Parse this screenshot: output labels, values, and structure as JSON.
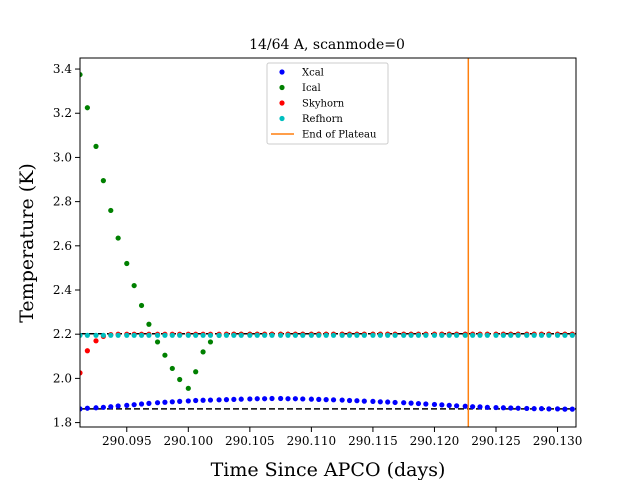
{
  "chart_data": {
    "type": "scatter",
    "title": "14/64 A, scanmode=0",
    "xlabel": "Time Since APCO (days)",
    "ylabel": "Temperature (K)",
    "xlim": [
      290.0912,
      290.1315
    ],
    "ylim": [
      1.78,
      3.45
    ],
    "xticks": [
      290.095,
      290.1,
      290.105,
      290.11,
      290.115,
      290.12,
      290.125,
      290.13
    ],
    "xtick_labels": [
      "290.095",
      "290.100",
      "290.105",
      "290.110",
      "290.115",
      "290.120",
      "290.125",
      "290.130"
    ],
    "yticks": [
      1.8,
      2.0,
      2.2,
      2.4,
      2.6,
      2.8,
      3.0,
      3.2,
      3.4
    ],
    "ytick_labels": [
      "1.8",
      "2.0",
      "2.2",
      "2.4",
      "2.6",
      "2.8",
      "3.0",
      "3.2",
      "3.4"
    ],
    "grid": false,
    "legend_position": "upper-center",
    "series": [
      {
        "name": "Xcal",
        "color": "#0000ff",
        "x": [
          290.0912,
          290.0918,
          290.0925,
          290.0931,
          290.0937,
          290.0943,
          290.095,
          290.0956,
          290.0962,
          290.0968,
          290.0975,
          290.0981,
          290.0987,
          290.0993,
          290.1,
          290.1006,
          290.1012,
          290.1018,
          290.1025,
          290.1031,
          290.1037,
          290.1043,
          290.105,
          290.1056,
          290.1062,
          290.1068,
          290.1075,
          290.1081,
          290.1087,
          290.1093,
          290.11,
          290.1106,
          290.1112,
          290.1118,
          290.1125,
          290.1131,
          290.1137,
          290.1143,
          290.115,
          290.1156,
          290.1162,
          290.1168,
          290.1175,
          290.1181,
          290.1187,
          290.1193,
          290.12,
          290.1206,
          290.1212,
          290.1218,
          290.1225,
          290.1231,
          290.1237,
          290.1243,
          290.125,
          290.1256,
          290.1262,
          290.1268,
          290.1275,
          290.1281,
          290.1287,
          290.1293,
          290.13,
          290.1306,
          290.1312
        ],
        "y": [
          1.862,
          1.865,
          1.867,
          1.869,
          1.872,
          1.875,
          1.878,
          1.881,
          1.884,
          1.887,
          1.89,
          1.892,
          1.894,
          1.896,
          1.898,
          1.9,
          1.901,
          1.902,
          1.903,
          1.904,
          1.905,
          1.906,
          1.907,
          1.908,
          1.908,
          1.909,
          1.909,
          1.908,
          1.908,
          1.907,
          1.906,
          1.905,
          1.904,
          1.903,
          1.902,
          1.9,
          1.899,
          1.897,
          1.896,
          1.894,
          1.893,
          1.891,
          1.89,
          1.888,
          1.886,
          1.884,
          1.882,
          1.88,
          1.878,
          1.876,
          1.874,
          1.872,
          1.871,
          1.869,
          1.868,
          1.867,
          1.866,
          1.865,
          1.864,
          1.863,
          1.863,
          1.862,
          1.862,
          1.861,
          1.861
        ]
      },
      {
        "name": "Ical",
        "color": "#008000",
        "x": [
          290.0912,
          290.0918,
          290.0925,
          290.0931,
          290.0937,
          290.0943,
          290.095,
          290.0956,
          290.0962,
          290.0968,
          290.0975,
          290.0981,
          290.0987,
          290.0993,
          290.1,
          290.1006,
          290.1012,
          290.1018,
          290.1025,
          290.1031,
          290.1037,
          290.1043,
          290.105,
          290.1056,
          290.1062,
          290.1068,
          290.1075,
          290.1081,
          290.1087,
          290.1093,
          290.11,
          290.1106,
          290.1112,
          290.1118,
          290.1125,
          290.1131,
          290.1137,
          290.1143,
          290.115,
          290.1156,
          290.1162,
          290.1168,
          290.1175,
          290.1181,
          290.1187,
          290.1193,
          290.12,
          290.1206,
          290.1212,
          290.1218,
          290.1225,
          290.1231,
          290.1237,
          290.1243,
          290.125,
          290.1256,
          290.1262,
          290.1268,
          290.1275,
          290.1281,
          290.1287,
          290.1293,
          290.13,
          290.1306,
          290.1312
        ],
        "y": [
          3.375,
          3.225,
          3.05,
          2.895,
          2.76,
          2.635,
          2.52,
          2.42,
          2.33,
          2.245,
          2.165,
          2.105,
          2.045,
          1.995,
          1.955,
          2.03,
          2.12,
          2.165,
          2.195,
          2.2,
          2.2,
          2.2,
          2.2,
          2.2,
          2.2,
          2.2,
          2.2,
          2.2,
          2.2,
          2.2,
          2.2,
          2.2,
          2.2,
          2.2,
          2.2,
          2.2,
          2.2,
          2.2,
          2.2,
          2.2,
          2.2,
          2.2,
          2.2,
          2.2,
          2.2,
          2.2,
          2.2,
          2.2,
          2.2,
          2.2,
          2.2,
          2.2,
          2.2,
          2.2,
          2.2,
          2.2,
          2.2,
          2.2,
          2.2,
          2.2,
          2.2,
          2.2,
          2.2,
          2.2,
          2.2
        ]
      },
      {
        "name": "Skyhorn",
        "color": "#ff0000",
        "x": [
          290.0912,
          290.0918,
          290.0925,
          290.0931,
          290.0937,
          290.0943,
          290.095,
          290.0956,
          290.0962,
          290.0968,
          290.0975,
          290.0981,
          290.0987,
          290.0993,
          290.1,
          290.1006,
          290.1012,
          290.1018,
          290.1025,
          290.1031,
          290.1037,
          290.1043,
          290.105,
          290.1056,
          290.1062,
          290.1068,
          290.1075,
          290.1081,
          290.1087,
          290.1093,
          290.11,
          290.1106,
          290.1112,
          290.1118,
          290.1125,
          290.1131,
          290.1137,
          290.1143,
          290.115,
          290.1156,
          290.1162,
          290.1168,
          290.1175,
          290.1181,
          290.1187,
          290.1193,
          290.12,
          290.1206,
          290.1212,
          290.1218,
          290.1225,
          290.1231,
          290.1237,
          290.1243,
          290.125,
          290.1256,
          290.1262,
          290.1268,
          290.1275,
          290.1281,
          290.1287,
          290.1293,
          290.13,
          290.1306,
          290.1312
        ],
        "y": [
          2.025,
          2.125,
          2.17,
          2.19,
          2.198,
          2.2,
          2.2,
          2.2,
          2.2,
          2.2,
          2.2,
          2.2,
          2.2,
          2.2,
          2.2,
          2.2,
          2.2,
          2.2,
          2.2,
          2.2,
          2.2,
          2.2,
          2.2,
          2.2,
          2.2,
          2.2,
          2.2,
          2.2,
          2.2,
          2.2,
          2.2,
          2.2,
          2.2,
          2.2,
          2.2,
          2.2,
          2.2,
          2.2,
          2.2,
          2.2,
          2.2,
          2.2,
          2.2,
          2.2,
          2.2,
          2.2,
          2.2,
          2.2,
          2.2,
          2.2,
          2.2,
          2.2,
          2.2,
          2.2,
          2.2,
          2.2,
          2.2,
          2.2,
          2.2,
          2.2,
          2.2,
          2.2,
          2.2,
          2.2,
          2.2
        ]
      },
      {
        "name": "Refhorn",
        "color": "#00bfbf",
        "x": [
          290.0912,
          290.0918,
          290.0925,
          290.0931,
          290.0937,
          290.0943,
          290.095,
          290.0956,
          290.0962,
          290.0968,
          290.0975,
          290.0981,
          290.0987,
          290.0993,
          290.1,
          290.1006,
          290.1012,
          290.1018,
          290.1025,
          290.1031,
          290.1037,
          290.1043,
          290.105,
          290.1056,
          290.1062,
          290.1068,
          290.1075,
          290.1081,
          290.1087,
          290.1093,
          290.11,
          290.1106,
          290.1112,
          290.1118,
          290.1125,
          290.1131,
          290.1137,
          290.1143,
          290.115,
          290.1156,
          290.1162,
          290.1168,
          290.1175,
          290.1181,
          290.1187,
          290.1193,
          290.12,
          290.1206,
          290.1212,
          290.1218,
          290.1225,
          290.1231,
          290.1237,
          290.1243,
          290.125,
          290.1256,
          290.1262,
          290.1268,
          290.1275,
          290.1281,
          290.1287,
          290.1293,
          290.13,
          290.1306,
          290.1312
        ],
        "y": [
          2.195,
          2.195,
          2.195,
          2.195,
          2.195,
          2.195,
          2.195,
          2.195,
          2.195,
          2.195,
          2.195,
          2.195,
          2.195,
          2.195,
          2.195,
          2.195,
          2.195,
          2.195,
          2.195,
          2.195,
          2.195,
          2.195,
          2.195,
          2.195,
          2.195,
          2.195,
          2.195,
          2.195,
          2.195,
          2.195,
          2.195,
          2.195,
          2.195,
          2.195,
          2.195,
          2.195,
          2.195,
          2.195,
          2.195,
          2.195,
          2.195,
          2.195,
          2.195,
          2.195,
          2.195,
          2.195,
          2.195,
          2.195,
          2.195,
          2.195,
          2.195,
          2.195,
          2.195,
          2.195,
          2.195,
          2.195,
          2.195,
          2.195,
          2.195,
          2.195,
          2.195,
          2.195,
          2.195,
          2.195,
          2.195
        ]
      }
    ],
    "reference_lines": [
      {
        "orientation": "horizontal",
        "y": 1.862,
        "style": "dashed",
        "color": "#000000"
      },
      {
        "orientation": "horizontal",
        "y": 2.202,
        "style": "dashed",
        "color": "#000000"
      }
    ],
    "vertical_lines": [
      {
        "name": "End of Plateau",
        "x": 290.12275,
        "color": "#ff7f0e"
      }
    ]
  }
}
